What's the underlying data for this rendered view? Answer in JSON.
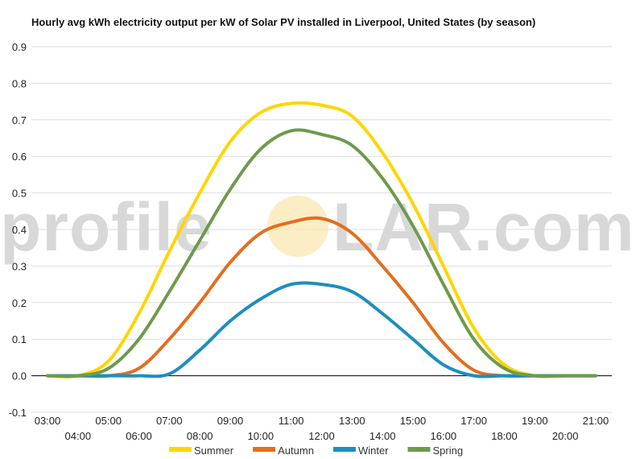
{
  "chart_data": {
    "type": "line",
    "title": "Hourly avg kWh electricity output per kW of Solar PV installed in Liverpool, United States (by season)",
    "xlabel": "",
    "ylabel": "",
    "ylim": [
      -0.1,
      0.9
    ],
    "yticks": [
      "-0.1",
      "0.0",
      "0.1",
      "0.2",
      "0.3",
      "0.4",
      "0.5",
      "0.6",
      "0.7",
      "0.8",
      "0.9"
    ],
    "grid": true,
    "legend_position": "bottom",
    "x": [
      "03:00",
      "04:00",
      "05:00",
      "06:00",
      "07:00",
      "08:00",
      "09:00",
      "10:00",
      "11:00",
      "12:00",
      "13:00",
      "14:00",
      "15:00",
      "16:00",
      "17:00",
      "18:00",
      "19:00",
      "20:00",
      "21:00"
    ],
    "series": [
      {
        "name": "Summer",
        "color": "#FFD500",
        "values": [
          0.0,
          0.0,
          0.04,
          0.17,
          0.34,
          0.5,
          0.64,
          0.72,
          0.745,
          0.74,
          0.71,
          0.61,
          0.47,
          0.3,
          0.13,
          0.03,
          0.0,
          0.0,
          0.0
        ]
      },
      {
        "name": "Autumn",
        "color": "#E36E1E",
        "values": [
          0.0,
          0.0,
          0.0,
          0.02,
          0.1,
          0.2,
          0.31,
          0.39,
          0.42,
          0.43,
          0.39,
          0.3,
          0.2,
          0.09,
          0.015,
          0.0,
          0.0,
          0.0,
          0.0
        ]
      },
      {
        "name": "Winter",
        "color": "#1D8EBE",
        "values": [
          0.0,
          0.0,
          0.0,
          0.0,
          0.005,
          0.07,
          0.15,
          0.21,
          0.25,
          0.25,
          0.23,
          0.17,
          0.1,
          0.03,
          0.0,
          0.0,
          0.0,
          0.0,
          0.0
        ]
      },
      {
        "name": "Spring",
        "color": "#6E9A4C",
        "values": [
          0.0,
          0.0,
          0.02,
          0.1,
          0.23,
          0.37,
          0.51,
          0.62,
          0.67,
          0.66,
          0.63,
          0.54,
          0.41,
          0.25,
          0.1,
          0.02,
          0.0,
          0.0,
          0.0
        ]
      }
    ]
  },
  "watermark": {
    "text_left": "profile",
    "text_right": "LAR.com",
    "sun_color": "#F9E7B0"
  },
  "axis_line_color": "#000000",
  "grid_color": "#dddddd"
}
